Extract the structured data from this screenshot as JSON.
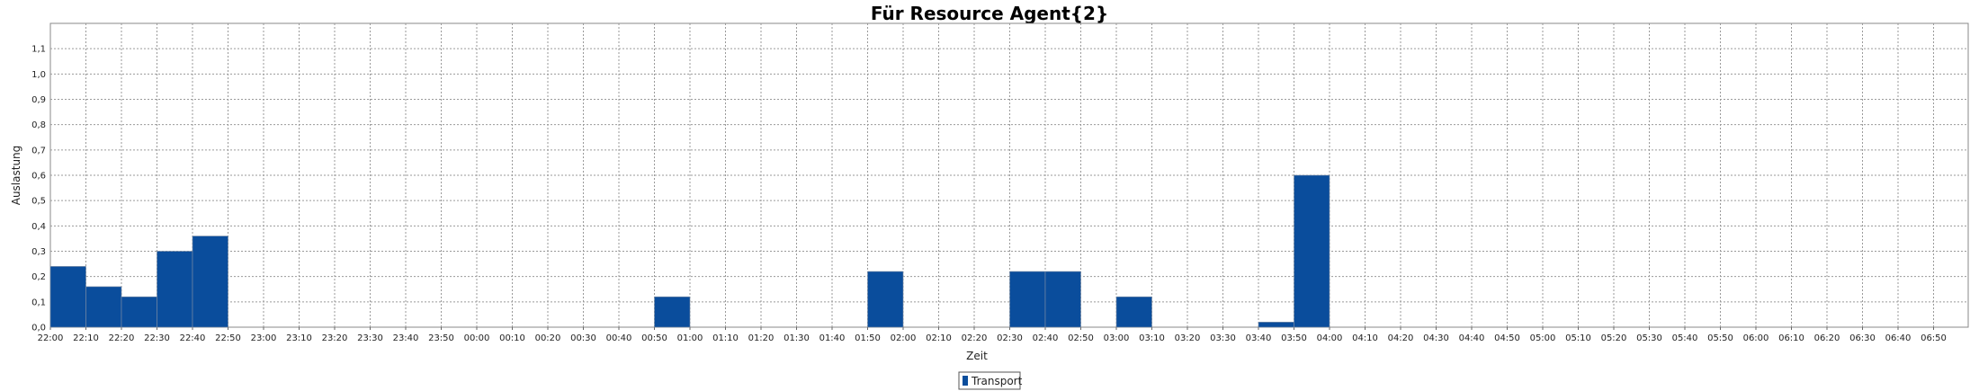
{
  "chart_data": {
    "type": "bar",
    "title": "Für Resource Agent{2}",
    "xlabel": "Zeit",
    "ylabel": "Auslastung",
    "ylim": [
      0,
      1.2
    ],
    "yticks": [
      "0,0",
      "0,1",
      "0,2",
      "0,3",
      "0,4",
      "0,5",
      "0,6",
      "0,7",
      "0,8",
      "0,9",
      "1,0",
      "1,1"
    ],
    "categories": [
      "22:00",
      "22:10",
      "22:20",
      "22:30",
      "22:40",
      "22:50",
      "23:00",
      "23:10",
      "23:20",
      "23:30",
      "23:40",
      "23:50",
      "00:00",
      "00:10",
      "00:20",
      "00:30",
      "00:40",
      "00:50",
      "01:00",
      "01:10",
      "01:20",
      "01:30",
      "01:40",
      "01:50",
      "02:00",
      "02:10",
      "02:20",
      "02:30",
      "02:40",
      "02:50",
      "03:00",
      "03:10",
      "03:20",
      "03:30",
      "03:40",
      "03:50",
      "04:00",
      "04:10",
      "04:20",
      "04:30",
      "04:40",
      "04:50",
      "05:00",
      "05:10",
      "05:20",
      "05:30",
      "05:40",
      "05:50",
      "06:00",
      "06:10",
      "06:20",
      "06:30",
      "06:40",
      "06:50"
    ],
    "series": [
      {
        "name": "Transport",
        "color": "#0a4d9c",
        "bars": [
          {
            "start": "22:00",
            "end": "22:10",
            "value": 0.24
          },
          {
            "start": "22:10",
            "end": "22:20",
            "value": 0.16
          },
          {
            "start": "22:20",
            "end": "22:30",
            "value": 0.12
          },
          {
            "start": "22:30",
            "end": "22:40",
            "value": 0.3
          },
          {
            "start": "22:40",
            "end": "22:50",
            "value": 0.36
          },
          {
            "start": "00:50",
            "end": "01:00",
            "value": 0.12
          },
          {
            "start": "01:50",
            "end": "02:00",
            "value": 0.22
          },
          {
            "start": "02:30",
            "end": "02:40",
            "value": 0.22
          },
          {
            "start": "02:40",
            "end": "02:50",
            "value": 0.22
          },
          {
            "start": "03:00",
            "end": "03:10",
            "value": 0.12
          },
          {
            "start": "03:40",
            "end": "03:50",
            "value": 0.02
          },
          {
            "start": "03:50",
            "end": "04:00",
            "value": 0.6
          }
        ]
      }
    ],
    "grid": true,
    "legend": "bottom-center"
  }
}
